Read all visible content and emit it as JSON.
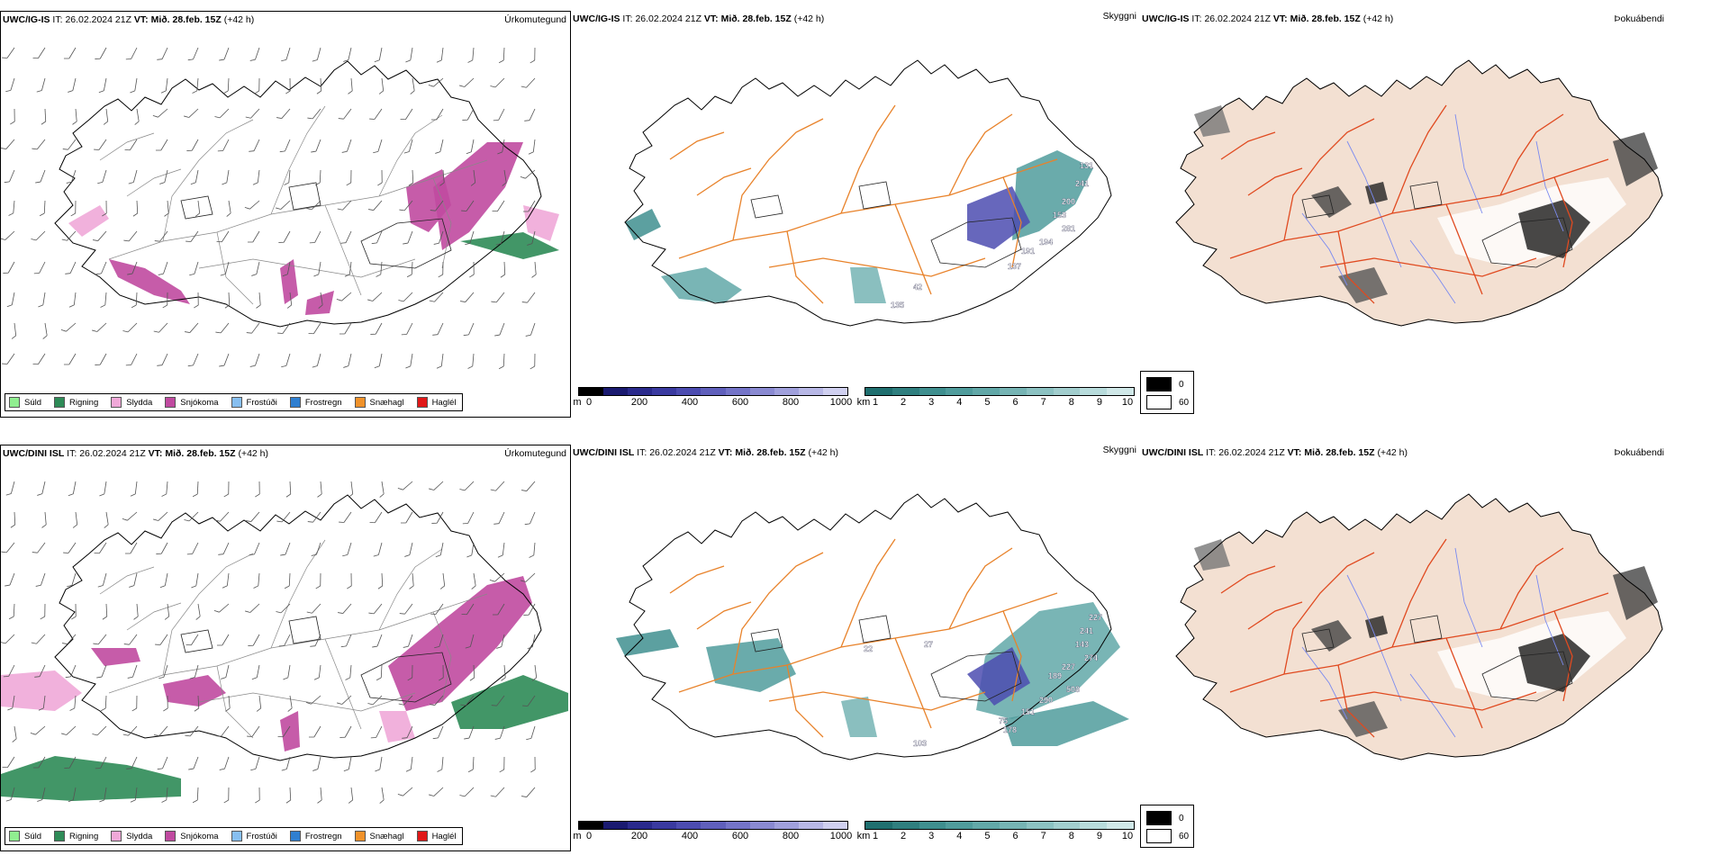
{
  "rows": [
    {
      "model": "UWC/IG-IS",
      "it_label": "IT:",
      "it_value": "26.02.2024 21Z",
      "vt_label": "VT:",
      "vt_value": "Mið. 28.feb. 15Z",
      "lead": "(+42 h)"
    },
    {
      "model": "UWC/DINI ISL",
      "it_label": "IT:",
      "it_value": "26.02.2024 21Z",
      "vt_label": "VT:",
      "vt_value": "Mið. 28.feb. 15Z",
      "lead": "(+42 h)"
    }
  ],
  "panel_titles": {
    "precip_type": "Úrkomutegund",
    "visibility": "Skyggni",
    "fog": "Þokuábendi"
  },
  "precip_legend": [
    {
      "label": "Súld",
      "color": "#90ee90"
    },
    {
      "label": "Rigning",
      "color": "#2e8b57"
    },
    {
      "label": "Slydda",
      "color": "#f0a8d8"
    },
    {
      "label": "Snjókoma",
      "color": "#c04aa0"
    },
    {
      "label": "Frostúði",
      "color": "#87bff0"
    },
    {
      "label": "Frostregn",
      "color": "#2f7fd0"
    },
    {
      "label": "Snæhagl",
      "color": "#f0922a"
    },
    {
      "label": "Haglél",
      "color": "#e01818"
    }
  ],
  "ceiling_scale": {
    "unit": "m",
    "ticks": [
      "0",
      "200",
      "400",
      "600",
      "800",
      "1000"
    ],
    "colors": [
      "#000000",
      "#1a1a70",
      "#2a2a8c",
      "#3a3aa0",
      "#4c4cb0",
      "#6060bc",
      "#7474c8",
      "#8a8ad2",
      "#a0a0dc",
      "#b8b8e6",
      "#d0d0f0"
    ]
  },
  "visibility_scale": {
    "unit": "km",
    "ticks": [
      "1",
      "2",
      "3",
      "4",
      "5",
      "6",
      "7",
      "8",
      "9",
      "10"
    ],
    "colors": [
      "#1f6f6f",
      "#2f7f7f",
      "#3f8f8f",
      "#509c9c",
      "#62a8a8",
      "#76b4b4",
      "#8cc2c2",
      "#a2cece",
      "#b8dcdc",
      "#d0e8e8"
    ]
  },
  "fog_legend": {
    "items": [
      {
        "label": "0",
        "color": "#000000"
      },
      {
        "label": "60",
        "color": "#ffffff"
      }
    ]
  },
  "ceiling_labels_top": [
    "131",
    "241",
    "200",
    "153",
    "281",
    "194",
    "191",
    "137",
    "42",
    "135"
  ],
  "ceiling_labels_bottom": [
    "227",
    "241",
    "143",
    "274",
    "227",
    "189",
    "508",
    "290",
    "151",
    "75",
    "178",
    "103",
    "22",
    "27"
  ],
  "map_colors": {
    "roads": "#e8822a",
    "roads_fog": "#e04a20",
    "rivers": "#7a8af0",
    "land_fog": "#f3e0d2",
    "coast": "#000000",
    "wind_barb": "#555555"
  }
}
